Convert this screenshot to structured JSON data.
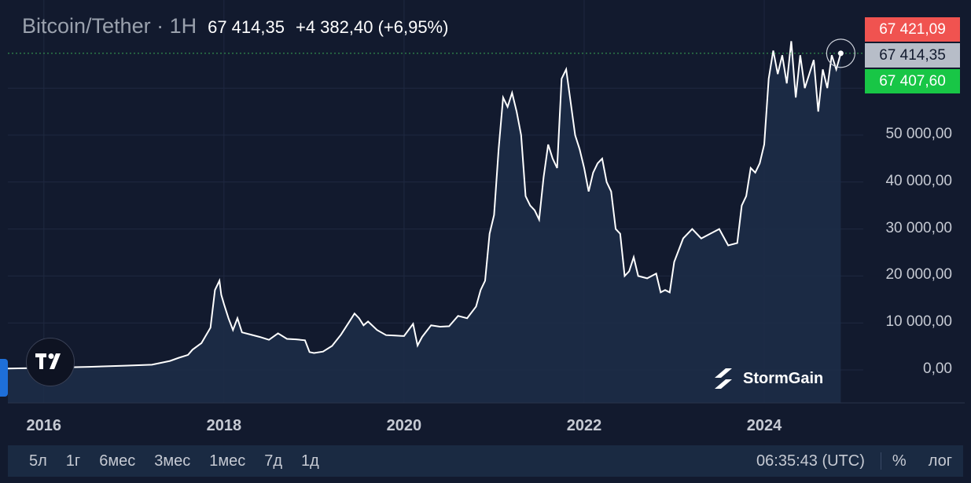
{
  "header": {
    "symbol": "Bitcoin/Tether · 1H",
    "price": "67 414,35",
    "change": "+4 382,40 (+6,95%)"
  },
  "price_labels": {
    "ask": "67 421,09",
    "last": "67 414,35",
    "bid": "67 407,60",
    "ask_color": "#f05350",
    "last_color": "#b7bdc8",
    "bid_color": "#18c646"
  },
  "brand": {
    "stormgain": "StormGain"
  },
  "range_buttons": [
    "5л",
    "1г",
    "6мес",
    "3мес",
    "1мес",
    "7д",
    "1д"
  ],
  "clock": "06:35:43 (UTC)",
  "options": {
    "percent": "%",
    "log": "лог"
  },
  "icons": {
    "tradingview": "tradingview-logo-icon",
    "stormgain": "stormgain-logo-icon",
    "left_handle": "chevron-left-icon"
  },
  "chart_data": {
    "type": "area",
    "title": "",
    "xlabel": "",
    "ylabel": "",
    "line_color": "#ffffff",
    "fill_color": "#1d2c47",
    "grid": true,
    "ylim": [
      -5000,
      72000
    ],
    "xlim": [
      2015.6,
      2025.1
    ],
    "y_ticks": [
      "0,00",
      "10 000,00",
      "20 000,00",
      "30 000,00",
      "40 000,00",
      "50 000,00"
    ],
    "y_tick_values": [
      0,
      10000,
      20000,
      30000,
      40000,
      50000
    ],
    "x_ticks": [
      "2016",
      "2018",
      "2020",
      "2022",
      "2024"
    ],
    "x_tick_values": [
      2016,
      2018,
      2020,
      2022,
      2024
    ],
    "last_price": 67414.35,
    "series": [
      {
        "x": [
          2015.6,
          2016.0,
          2016.5,
          2016.9,
          2017.2,
          2017.4,
          2017.5,
          2017.6,
          2017.65,
          2017.75,
          2017.85,
          2017.9,
          2017.95,
          2017.97,
          2018.0,
          2018.05,
          2018.1,
          2018.15,
          2018.2,
          2018.3,
          2018.4,
          2018.5,
          2018.6,
          2018.7,
          2018.8,
          2018.9,
          2018.95,
          2019.0,
          2019.1,
          2019.2,
          2019.3,
          2019.4,
          2019.45,
          2019.5,
          2019.55,
          2019.6,
          2019.7,
          2019.8,
          2019.9,
          2020.0,
          2020.1,
          2020.15,
          2020.2,
          2020.3,
          2020.4,
          2020.5,
          2020.6,
          2020.7,
          2020.8,
          2020.85,
          2020.9,
          2020.95,
          2021.0,
          2021.05,
          2021.1,
          2021.15,
          2021.2,
          2021.25,
          2021.3,
          2021.35,
          2021.4,
          2021.45,
          2021.5,
          2021.55,
          2021.6,
          2021.65,
          2021.7,
          2021.75,
          2021.8,
          2021.85,
          2021.9,
          2021.95,
          2022.0,
          2022.05,
          2022.1,
          2022.15,
          2022.2,
          2022.25,
          2022.3,
          2022.35,
          2022.4,
          2022.45,
          2022.5,
          2022.55,
          2022.6,
          2022.7,
          2022.8,
          2022.85,
          2022.9,
          2022.95,
          2023.0,
          2023.1,
          2023.2,
          2023.3,
          2023.4,
          2023.5,
          2023.6,
          2023.7,
          2023.75,
          2023.8,
          2023.85,
          2023.9,
          2023.95,
          2024.0,
          2024.05,
          2024.1,
          2024.15,
          2024.2,
          2024.25,
          2024.3,
          2024.35,
          2024.4,
          2024.45,
          2024.5,
          2024.55,
          2024.6,
          2024.65,
          2024.7,
          2024.75,
          2024.8,
          2024.85
        ],
        "values": [
          300,
          430,
          650,
          900,
          1100,
          1900,
          2600,
          3200,
          4300,
          5700,
          9000,
          17000,
          19000,
          16000,
          14000,
          11000,
          8500,
          11000,
          8000,
          7500,
          7000,
          6400,
          7800,
          6600,
          6500,
          6300,
          3800,
          3600,
          3900,
          5100,
          7500,
          10500,
          12000,
          11000,
          9500,
          10300,
          8500,
          7400,
          7300,
          7200,
          9800,
          5200,
          7000,
          9500,
          9200,
          9300,
          11500,
          11000,
          13500,
          17000,
          19000,
          29000,
          33000,
          47000,
          58000,
          56000,
          59000,
          55000,
          50000,
          37000,
          35000,
          34000,
          32000,
          41000,
          48000,
          45000,
          43000,
          62000,
          64000,
          57000,
          50000,
          47000,
          43000,
          38000,
          42000,
          44000,
          45000,
          40000,
          38000,
          30000,
          29000,
          20000,
          21000,
          24000,
          20000,
          19500,
          20500,
          16500,
          17000,
          16500,
          23000,
          28000,
          30000,
          28000,
          29000,
          30000,
          26500,
          27000,
          35000,
          37000,
          43000,
          42000,
          44000,
          48000,
          62000,
          68000,
          63000,
          67000,
          61000,
          70000,
          58000,
          67000,
          60000,
          63000,
          66000,
          55000,
          64000,
          60000,
          67000,
          64000,
          67414
        ]
      }
    ]
  }
}
